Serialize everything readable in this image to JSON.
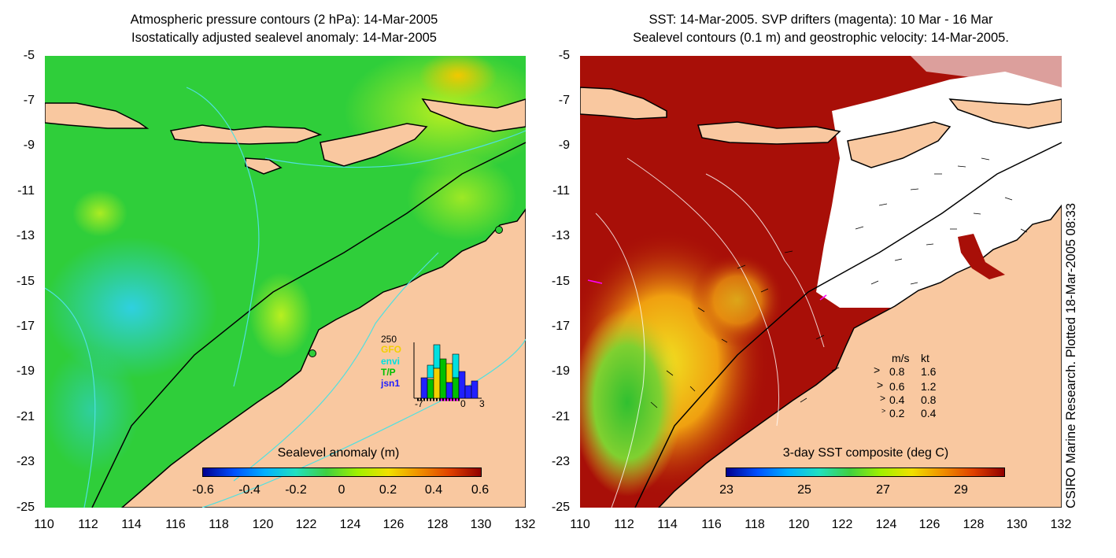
{
  "left_panel": {
    "title_line1": "Atmospheric pressure contours (2 hPa): 14-Mar-2005",
    "title_line2": "Isostatically adjusted sealevel anomaly: 14-Mar-2005",
    "colorbar_label": "Sealevel anomaly (m)",
    "colorbar_ticks": [
      "-0.6",
      "-0.4",
      "-0.2",
      "0",
      "0.2",
      "0.4",
      "0.6"
    ],
    "histogram": {
      "ymax_label": "250",
      "legend": [
        {
          "name": "GFO",
          "color": "#f2d000"
        },
        {
          "name": "envi",
          "color": "#00e0e0"
        },
        {
          "name": "T/P",
          "color": "#00c000"
        },
        {
          "name": "jsn1",
          "color": "#2020ff"
        }
      ],
      "x_ticks": [
        "-7",
        "0",
        "3"
      ]
    }
  },
  "right_panel": {
    "title_line1": "SST: 14-Mar-2005. SVP drifters (magenta): 10 Mar - 16 Mar",
    "title_line2": "Sealevel contours (0.1 m) and geostrophic velocity: 14-Mar-2005.",
    "colorbar_label": "3-day SST composite (deg C)",
    "colorbar_ticks": [
      "23",
      "25",
      "27",
      "29"
    ],
    "velocity_legend": {
      "header_ms": "m/s",
      "header_kt": "kt",
      "rows": [
        {
          "ms": "0.8",
          "kt": "1.6"
        },
        {
          "ms": "0.6",
          "kt": "1.2"
        },
        {
          "ms": "0.4",
          "kt": "0.8"
        },
        {
          "ms": "0.2",
          "kt": "0.4"
        }
      ]
    }
  },
  "axes": {
    "lat_ticks": [
      "-5",
      "-7",
      "-9",
      "-11",
      "-13",
      "-15",
      "-17",
      "-19",
      "-21",
      "-23",
      "-25"
    ],
    "lon_ticks": [
      "110",
      "112",
      "114",
      "116",
      "118",
      "120",
      "122",
      "124",
      "126",
      "128",
      "130",
      "132"
    ]
  },
  "side_note": "CSIRO Marine Research. Plotted 18-Mar-2005 08:33",
  "colors": {
    "land": "#f9c8a0",
    "ocean_green": "#2fce3a",
    "sst_red": "#a80f08"
  }
}
